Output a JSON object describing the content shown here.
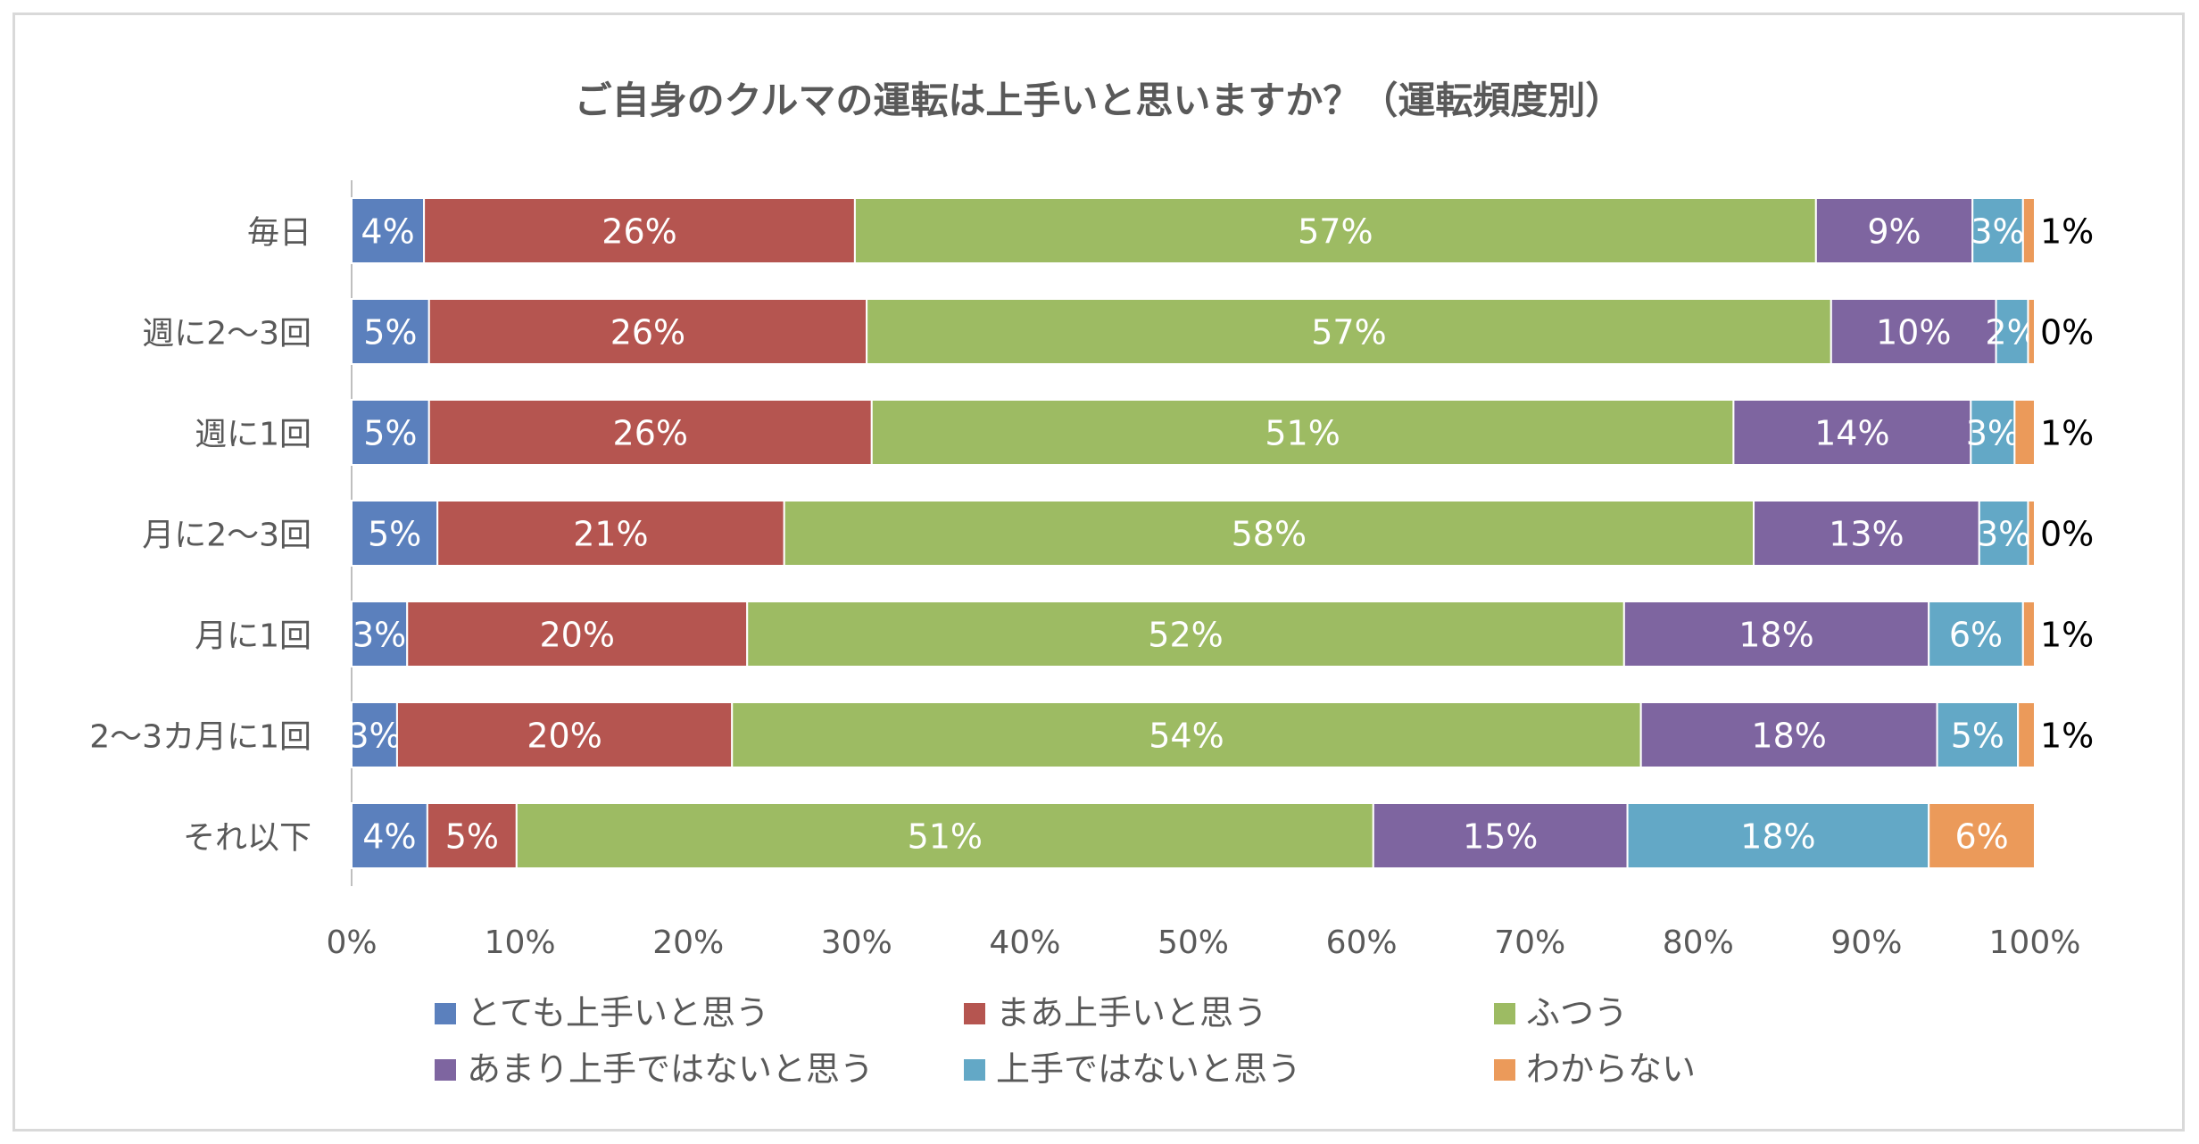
{
  "chart_data": {
    "type": "bar",
    "orientation": "horizontal",
    "stacked": "percent",
    "title": "ご自身のクルマの運転は上手いと思いますか？（運転頻度別）",
    "categories": [
      "毎日",
      "週に2〜3回",
      "週に1回",
      "月に2〜3回",
      "月に1回",
      "2〜3カ月に1回",
      "それ以下"
    ],
    "series": [
      {
        "name": "とても上手いと思う",
        "color": "#5b80bd",
        "values": [
          4.3,
          4.6,
          4.6,
          5.1,
          3.3,
          2.7,
          4.5
        ],
        "labels": [
          "4%",
          "5%",
          "5%",
          "5%",
          "3%",
          "3%",
          "4%"
        ]
      },
      {
        "name": "まあ上手いと思う",
        "color": "#b55550",
        "values": [
          25.6,
          26.0,
          26.3,
          20.6,
          20.2,
          19.9,
          5.3
        ],
        "labels": [
          "26%",
          "26%",
          "26%",
          "21%",
          "20%",
          "20%",
          "5%"
        ]
      },
      {
        "name": "ふつう",
        "color": "#9dbb63",
        "values": [
          57.1,
          57.3,
          51.2,
          57.6,
          52.1,
          54.0,
          50.9
        ],
        "labels": [
          "57%",
          "57%",
          "51%",
          "58%",
          "52%",
          "54%",
          "51%"
        ]
      },
      {
        "name": "あまり上手ではないと思う",
        "color": "#7e65a0",
        "values": [
          9.3,
          9.8,
          14.1,
          13.4,
          18.1,
          17.6,
          15.1
        ],
        "labels": [
          "9%",
          "10%",
          "14%",
          "13%",
          "18%",
          "18%",
          "15%"
        ]
      },
      {
        "name": "上手ではないと思う",
        "color": "#63a8c6",
        "values": [
          3.0,
          1.9,
          2.6,
          2.9,
          5.6,
          4.8,
          17.9
        ],
        "labels": [
          "3%",
          "2%",
          "3%",
          "3%",
          "6%",
          "5%",
          "18%"
        ]
      },
      {
        "name": "わからない",
        "color": "#eb9a5a",
        "values": [
          0.7,
          0.4,
          1.2,
          0.4,
          0.7,
          1.0,
          6.3
        ],
        "labels": [
          "1%",
          "0%",
          "1%",
          "0%",
          "1%",
          "1%",
          "6%"
        ]
      }
    ],
    "xlim": [
      0,
      100
    ],
    "xticks": [
      "0%",
      "10%",
      "20%",
      "30%",
      "40%",
      "50%",
      "60%",
      "70%",
      "80%",
      "90%",
      "100%"
    ],
    "grid": false,
    "legend_position": "bottom"
  }
}
